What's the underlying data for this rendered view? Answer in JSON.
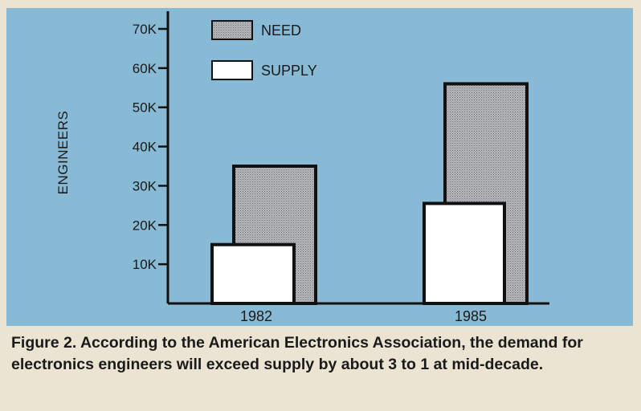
{
  "chart_data": {
    "type": "bar",
    "title": "",
    "xlabel": "",
    "ylabel": "ENGINEERS",
    "categories": [
      "1982",
      "1985"
    ],
    "series": [
      {
        "name": "NEED",
        "values": [
          35000,
          56000
        ],
        "color": "#a9a9ab"
      },
      {
        "name": "SUPPLY",
        "values": [
          15000,
          25500
        ],
        "color": "#ffffff"
      }
    ],
    "ylim": [
      0,
      70000
    ],
    "yticks": [
      10000,
      20000,
      30000,
      40000,
      50000,
      60000,
      70000
    ],
    "ytick_labels": [
      "10K",
      "20K",
      "30K",
      "40K",
      "50K",
      "60K",
      "70K"
    ],
    "legend_placement": "top-left",
    "grid": false
  },
  "caption": "Figure 2. According to the American Electronics Association, the demand for electronics engineers will exceed supply by about 3 to 1 at mid-decade.",
  "colors": {
    "background": "#88bad6",
    "page": "#ece4d3"
  }
}
